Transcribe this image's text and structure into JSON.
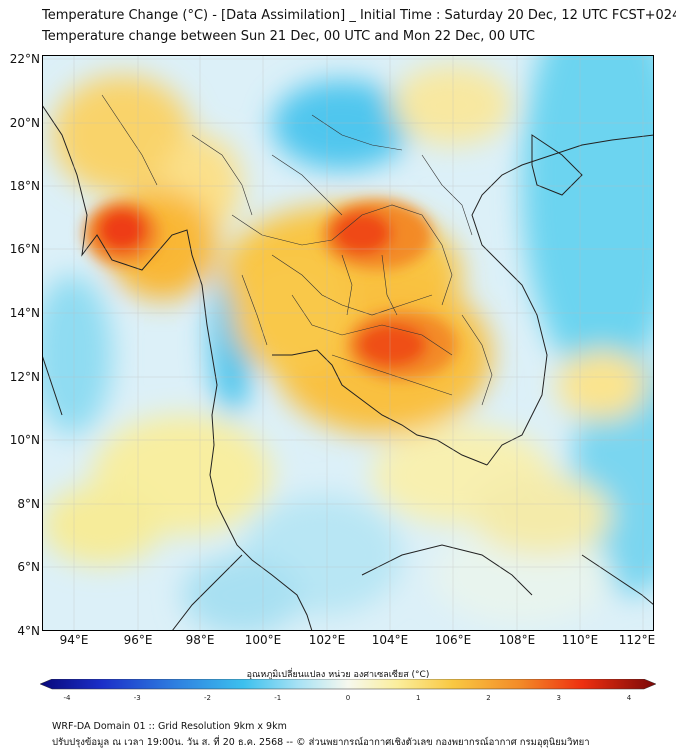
{
  "title_line1": "Temperature Change (°C) - [Data Assimilation] _ Initial Time : Saturday 20 Dec, 12 UTC FCST+024",
  "title_line2": "Temperature change between Sun 21 Dec, 00 UTC and Mon 22 Dec, 00 UTC",
  "lat_labels": [
    "22°N",
    "20°N",
    "18°N",
    "16°N",
    "14°N",
    "12°N",
    "10°N",
    "8°N",
    "6°N",
    "4°N"
  ],
  "lon_labels": [
    "94°E",
    "96°E",
    "98°E",
    "100°E",
    "102°E",
    "104°E",
    "106°E",
    "108°E",
    "110°E",
    "112°E"
  ],
  "colorbar": {
    "title": "อุณหภูมิเปลี่ยนแปลง หน่วย องศาเซลเซียส (°C)",
    "min": -4,
    "max": 4,
    "tick_labels": [
      "-4",
      "-3",
      "-2",
      "-1",
      "0",
      "1",
      "2",
      "3",
      "4"
    ]
  },
  "colors": {
    "strong_warm": "#ef3010",
    "warm": "#f9b833",
    "mild_warm": "#fce57a",
    "neutral": "#f6f8ee",
    "mild_cool": "#b8e4f4",
    "cool": "#45c8ee"
  },
  "footer_line1": "WRF-DA Domain 01 :: Grid Resolution 9km x 9km",
  "footer_line2": "ปรับปรุงข้อมูล ณ เวลา 19:00น. วัน ส. ที่ 20 ธ.ค. 2568 -- © ส่วนพยากรณ์อากาศเชิงตัวเลข กองพยากรณ์อากาศ กรมอุตุนิยมวิทยา"
}
